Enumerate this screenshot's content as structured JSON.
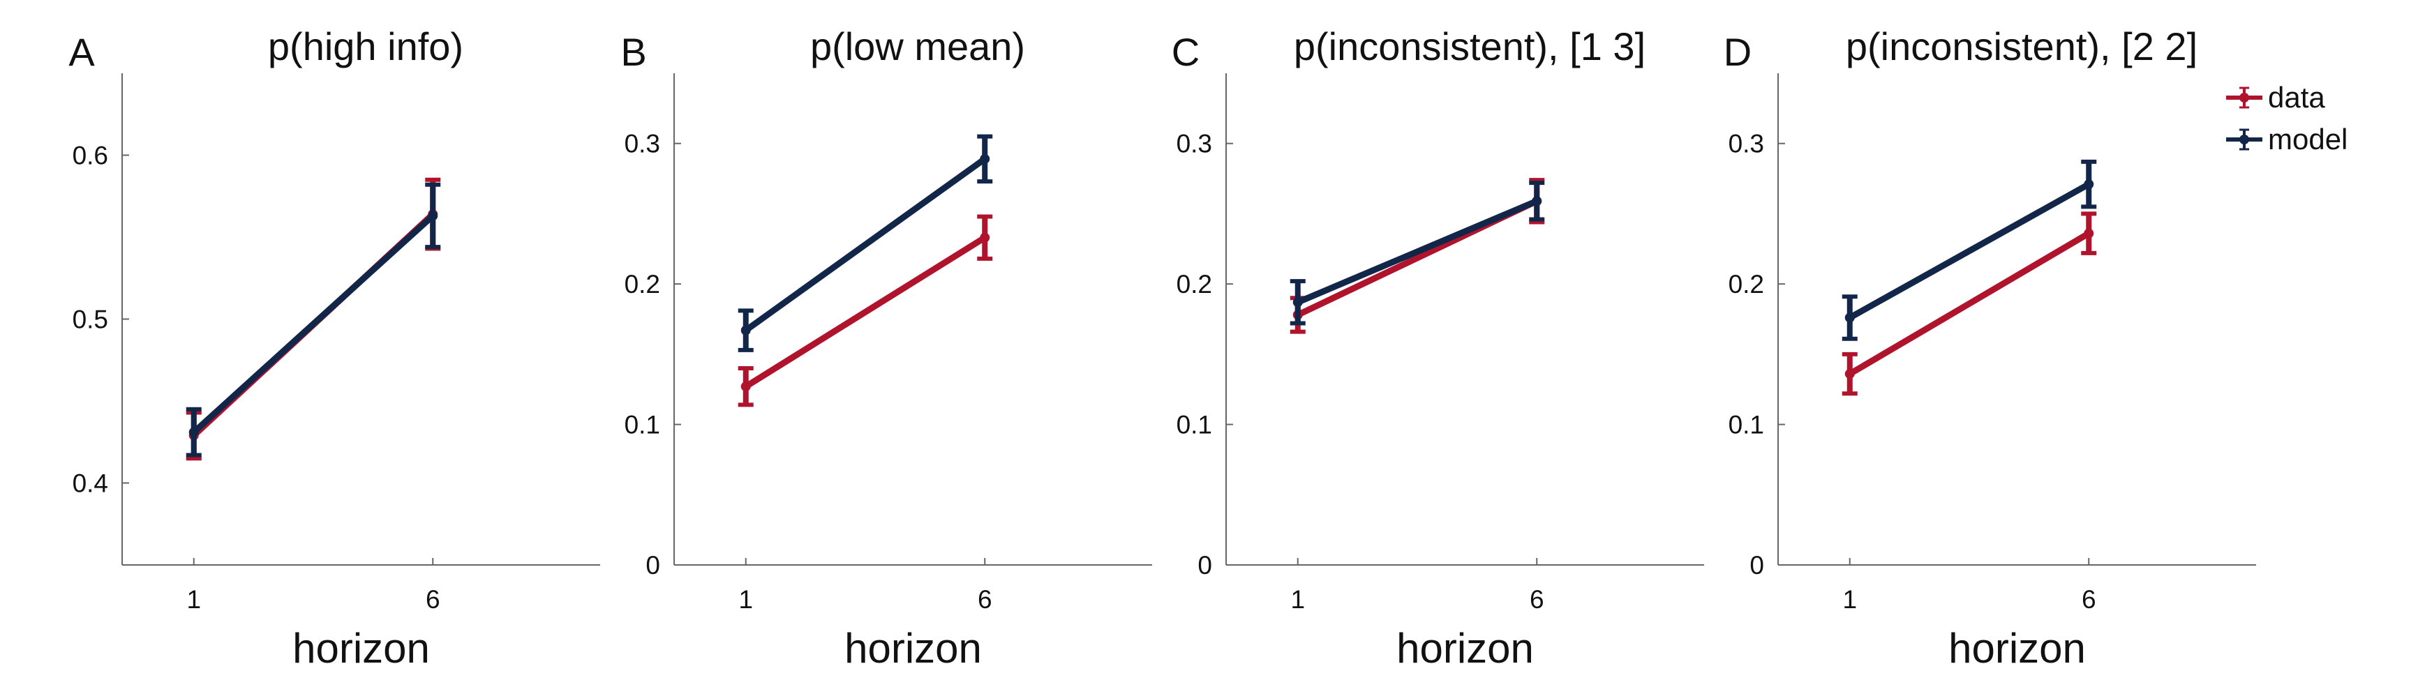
{
  "chart_data": [
    {
      "type": "line",
      "panel_letter": "A",
      "title": "p(high info)",
      "xlabel": "horizon",
      "ylabel": "",
      "x": [
        1,
        6
      ],
      "xticks": [
        1,
        6
      ],
      "xlim": [
        -0.5,
        9.5
      ],
      "ylim": [
        0.35,
        0.65
      ],
      "yticks": [
        "0.4",
        "0.5",
        "0.6"
      ],
      "series": [
        {
          "name": "data",
          "color": "#b0142d",
          "values": [
            0.429,
            0.564
          ],
          "errors": [
            0.014,
            0.021
          ]
        },
        {
          "name": "model",
          "color": "#12264a",
          "values": [
            0.431,
            0.563
          ],
          "errors": [
            0.014,
            0.019
          ]
        }
      ]
    },
    {
      "type": "line",
      "panel_letter": "B",
      "title": "p(low mean)",
      "xlabel": "horizon",
      "ylabel": "",
      "x": [
        1,
        6
      ],
      "xticks": [
        1,
        6
      ],
      "xlim": [
        -0.5,
        9.5
      ],
      "ylim": [
        0,
        0.35
      ],
      "yticks": [
        "0",
        "0.1",
        "0.2",
        "0.3"
      ],
      "series": [
        {
          "name": "data",
          "color": "#b0142d",
          "values": [
            0.127,
            0.233
          ],
          "errors": [
            0.013,
            0.015
          ]
        },
        {
          "name": "model",
          "color": "#12264a",
          "values": [
            0.167,
            0.289
          ],
          "errors": [
            0.014,
            0.016
          ]
        }
      ]
    },
    {
      "type": "line",
      "panel_letter": "C",
      "title": "p(inconsistent), [1 3]",
      "xlabel": "horizon",
      "ylabel": "",
      "x": [
        1,
        6
      ],
      "xticks": [
        1,
        6
      ],
      "xlim": [
        -0.5,
        9.5
      ],
      "ylim": [
        0,
        0.35
      ],
      "yticks": [
        "0",
        "0.1",
        "0.2",
        "0.3"
      ],
      "series": [
        {
          "name": "data",
          "color": "#b0142d",
          "values": [
            0.178,
            0.259
          ],
          "errors": [
            0.012,
            0.015
          ]
        },
        {
          "name": "model",
          "color": "#12264a",
          "values": [
            0.187,
            0.259
          ],
          "errors": [
            0.015,
            0.013
          ]
        }
      ]
    },
    {
      "type": "line",
      "panel_letter": "D",
      "title": "p(inconsistent), [2 2]",
      "xlabel": "horizon",
      "ylabel": "",
      "x": [
        1,
        6
      ],
      "xticks": [
        1,
        6
      ],
      "xlim": [
        -0.5,
        9.5
      ],
      "ylim": [
        0,
        0.35
      ],
      "yticks": [
        "0",
        "0.1",
        "0.2",
        "0.3"
      ],
      "series": [
        {
          "name": "data",
          "color": "#b0142d",
          "values": [
            0.136,
            0.236
          ],
          "errors": [
            0.014,
            0.014
          ]
        },
        {
          "name": "model",
          "color": "#12264a",
          "values": [
            0.176,
            0.271
          ],
          "errors": [
            0.015,
            0.016
          ]
        }
      ]
    }
  ],
  "legend": {
    "placement": "top-right",
    "items": [
      {
        "label": "data",
        "color": "#b0142d"
      },
      {
        "label": "model",
        "color": "#12264a"
      }
    ]
  }
}
